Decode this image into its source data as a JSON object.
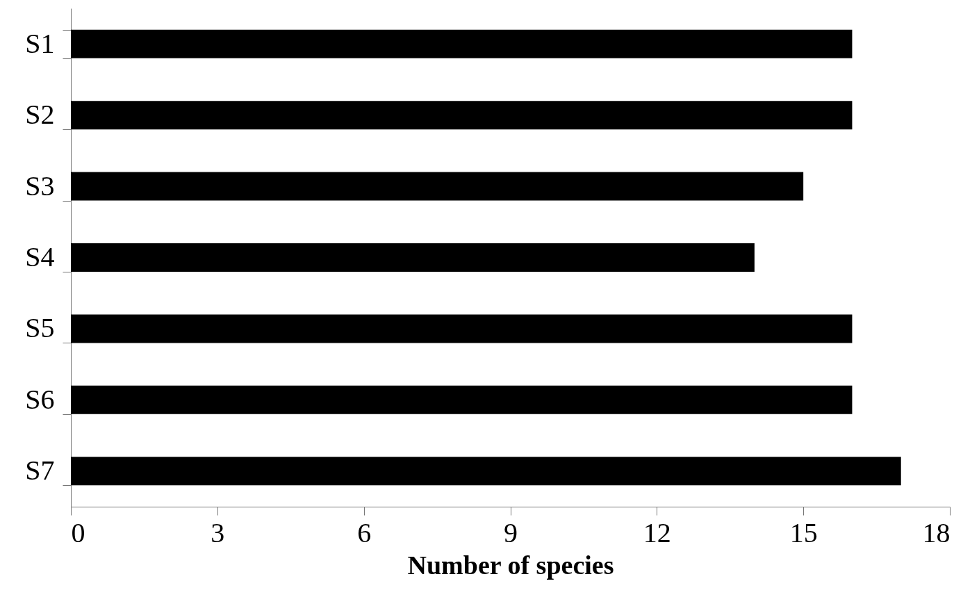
{
  "chart_data": {
    "type": "bar",
    "orientation": "horizontal",
    "xlabel": "Number of species",
    "categories": [
      "S1",
      "S2",
      "S3",
      "S4",
      "S5",
      "S6",
      "S7"
    ],
    "values": [
      16,
      16,
      15,
      14,
      16,
      16,
      17
    ],
    "color": "#000000",
    "xlim": [
      0,
      18
    ],
    "xticks": [
      0,
      3,
      6,
      9,
      12,
      15,
      18
    ]
  }
}
